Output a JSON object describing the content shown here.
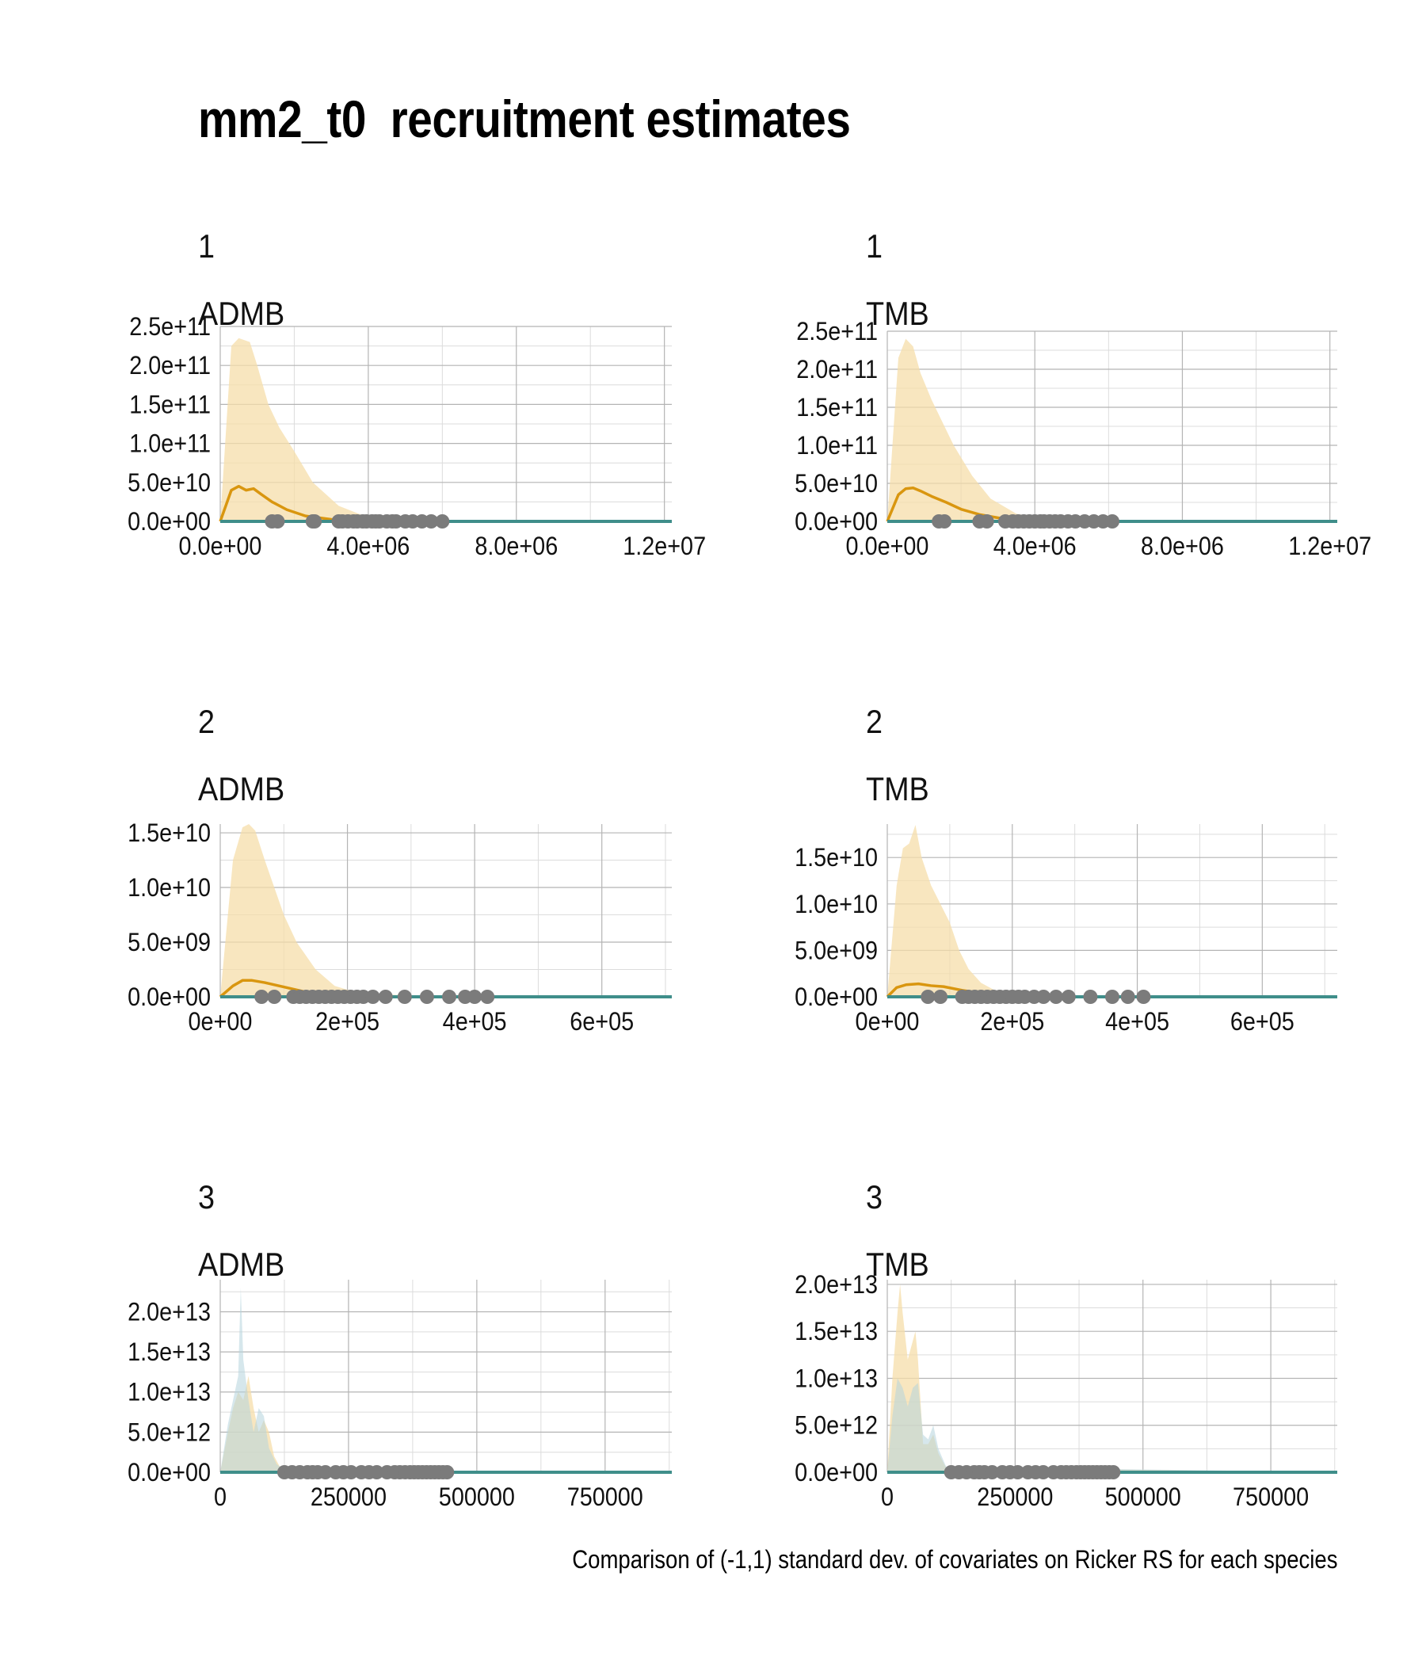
{
  "title": "mm2_t0  recruitment estimates",
  "caption": "Comparison of (-1,1) standard dev. of covariates on Ricker RS for each species",
  "colors": {
    "ci_orange": "#f5deaa",
    "ci_blue": "#b5d4dc",
    "line_orange": "#d9960f",
    "line_teal": "#3f8e8a",
    "points": "#7b7b7b"
  },
  "chart_data": [
    {
      "type": "area",
      "panel": "species-1-admb",
      "species_label": "1",
      "model_label": "ADMB",
      "xlim": [
        0,
        12200000
      ],
      "ylim": [
        0,
        250000000000
      ],
      "x_ticks": [
        0,
        4000000,
        8000000,
        12000000
      ],
      "x_tick_labels": [
        "0.0e+00",
        "4.0e+06",
        "8.0e+06",
        "1.2e+07"
      ],
      "y_ticks": [
        0,
        50000000000,
        100000000000,
        150000000000,
        200000000000,
        250000000000
      ],
      "y_tick_labels": [
        "0.0e+00",
        "5.0e+10",
        "1.0e+11",
        "1.5e+11",
        "2.0e+11",
        "2.5e+11"
      ],
      "series": [
        {
          "kind": "ci_upper_orange",
          "x": [
            0,
            300000,
            500000,
            800000,
            1000000,
            1300000,
            1600000,
            2000000,
            2500000,
            3200000,
            4000000,
            5000000,
            12200000
          ],
          "values": [
            0,
            225000000000,
            235000000000,
            230000000000,
            200000000000,
            150000000000,
            120000000000,
            90000000000,
            50000000000,
            20000000000,
            5000000000,
            1000000000,
            0
          ]
        },
        {
          "kind": "mean_orange",
          "x": [
            0,
            300000,
            500000,
            700000,
            900000,
            1100000,
            1400000,
            1800000,
            2300000,
            3000000,
            4000000,
            5000000,
            12200000
          ],
          "values": [
            0,
            40000000000,
            45000000000,
            40000000000,
            42000000000,
            35000000000,
            25000000000,
            15000000000,
            7000000000,
            2500000000,
            600000000,
            100000000,
            0
          ]
        },
        {
          "kind": "mean_teal",
          "x": [
            0,
            12200000
          ],
          "values": [
            0,
            0
          ]
        }
      ],
      "points_x": [
        1400000,
        1550000,
        2500000,
        2550000,
        3200000,
        3300000,
        3450000,
        3600000,
        3700000,
        3850000,
        3950000,
        4100000,
        4200000,
        4300000,
        4500000,
        4650000,
        4750000,
        5000000,
        5200000,
        5450000,
        5700000,
        6000000
      ],
      "points_y": 0
    },
    {
      "type": "area",
      "panel": "species-1-tmb",
      "species_label": "1",
      "model_label": "TMB",
      "xlim": [
        0,
        12200000
      ],
      "ylim": [
        0,
        250000000000
      ],
      "x_ticks": [
        0,
        4000000,
        8000000,
        12000000
      ],
      "x_tick_labels": [
        "0.0e+00",
        "4.0e+06",
        "8.0e+06",
        "1.2e+07"
      ],
      "y_ticks": [
        0,
        50000000000,
        100000000000,
        150000000000,
        200000000000,
        250000000000
      ],
      "y_tick_labels": [
        "0.0e+00",
        "5.0e+10",
        "1.0e+11",
        "1.5e+11",
        "2.0e+11",
        "2.5e+11"
      ],
      "series": [
        {
          "kind": "ci_upper_orange",
          "x": [
            0,
            300000,
            500000,
            700000,
            900000,
            1200000,
            1500000,
            1800000,
            2300000,
            2800000,
            3500000,
            4500000,
            12200000
          ],
          "values": [
            0,
            215000000000,
            240000000000,
            230000000000,
            195000000000,
            160000000000,
            130000000000,
            100000000000,
            60000000000,
            30000000000,
            10000000000,
            2000000000,
            0
          ]
        },
        {
          "kind": "mean_orange",
          "x": [
            0,
            300000,
            500000,
            700000,
            900000,
            1200000,
            1600000,
            2000000,
            2500000,
            3200000,
            4000000,
            5000000,
            12200000
          ],
          "values": [
            0,
            35000000000,
            43000000000,
            44000000000,
            40000000000,
            33000000000,
            25000000000,
            16000000000,
            9000000000,
            3000000000,
            700000000,
            100000000,
            0
          ]
        },
        {
          "kind": "mean_teal",
          "x": [
            0,
            12200000
          ],
          "values": [
            0,
            0
          ]
        }
      ],
      "points_x": [
        1400000,
        1550000,
        2500000,
        2700000,
        3200000,
        3400000,
        3550000,
        3700000,
        3850000,
        4000000,
        4150000,
        4250000,
        4400000,
        4550000,
        4700000,
        4900000,
        5100000,
        5350000,
        5600000,
        5850000,
        6100000
      ],
      "points_y": 0
    },
    {
      "type": "area",
      "panel": "species-2-admb",
      "species_label": "2",
      "model_label": "ADMB",
      "xlim": [
        0,
        710000
      ],
      "ylim": [
        0,
        15800000000
      ],
      "x_ticks": [
        0,
        200000,
        400000,
        600000
      ],
      "x_tick_labels": [
        "0e+00",
        "2e+05",
        "4e+05",
        "6e+05"
      ],
      "y_ticks": [
        0,
        5000000000,
        10000000000,
        15000000000
      ],
      "y_tick_labels": [
        "0.0e+00",
        "5.0e+09",
        "1.0e+10",
        "1.5e+10"
      ],
      "series": [
        {
          "kind": "ci_upper_orange",
          "x": [
            0,
            20000,
            35000,
            45000,
            55000,
            70000,
            85000,
            100000,
            120000,
            150000,
            180000,
            220000,
            260000,
            710000
          ],
          "values": [
            0,
            12500000000,
            15500000000,
            15800000000,
            15200000000,
            12500000000,
            10000000000,
            7500000000,
            5000000000,
            2500000000,
            1000000000,
            300000000,
            50000000,
            0
          ]
        },
        {
          "kind": "mean_orange",
          "x": [
            0,
            20000,
            35000,
            50000,
            70000,
            100000,
            130000,
            170000,
            220000,
            300000,
            710000
          ],
          "values": [
            0,
            1000000000,
            1500000000,
            1500000000,
            1300000000,
            900000000,
            500000000,
            200000000,
            60000000,
            10000000,
            0
          ]
        },
        {
          "kind": "mean_teal",
          "x": [
            0,
            710000
          ],
          "values": [
            0,
            0
          ]
        }
      ],
      "points_x": [
        65000,
        85000,
        115000,
        125000,
        135000,
        145000,
        155000,
        165000,
        175000,
        185000,
        195000,
        205000,
        215000,
        225000,
        240000,
        260000,
        290000,
        325000,
        360000,
        385000,
        400000,
        420000
      ],
      "points_y": 0
    },
    {
      "type": "area",
      "panel": "species-2-tmb",
      "species_label": "2",
      "model_label": "TMB",
      "xlim": [
        0,
        720000
      ],
      "ylim": [
        0,
        18600000000
      ],
      "x_ticks": [
        0,
        200000,
        400000,
        600000
      ],
      "x_tick_labels": [
        "0e+00",
        "2e+05",
        "4e+05",
        "6e+05"
      ],
      "y_ticks": [
        0,
        5000000000,
        10000000000,
        15000000000
      ],
      "y_tick_labels": [
        "0.0e+00",
        "5.0e+09",
        "1.0e+10",
        "1.5e+10"
      ],
      "series": [
        {
          "kind": "ci_upper_orange",
          "x": [
            0,
            15000,
            25000,
            35000,
            45000,
            55000,
            70000,
            85000,
            100000,
            115000,
            130000,
            150000,
            175000,
            210000,
            720000
          ],
          "values": [
            0,
            12000000000,
            16000000000,
            16500000000,
            18500000000,
            15000000000,
            12000000000,
            10000000000,
            8000000000,
            5000000000,
            3000000000,
            1500000000,
            600000000,
            100000000,
            0
          ]
        },
        {
          "kind": "mean_orange",
          "x": [
            0,
            15000,
            30000,
            50000,
            70000,
            90000,
            120000,
            160000,
            200000,
            260000,
            720000
          ],
          "values": [
            0,
            1000000000,
            1300000000,
            1400000000,
            1200000000,
            1100000000,
            700000000,
            300000000,
            100000000,
            20000000,
            0
          ]
        },
        {
          "kind": "mean_teal",
          "x": [
            0,
            720000
          ],
          "values": [
            0,
            0
          ]
        }
      ],
      "points_x": [
        65000,
        85000,
        120000,
        130000,
        140000,
        150000,
        160000,
        170000,
        180000,
        190000,
        200000,
        210000,
        220000,
        235000,
        250000,
        270000,
        290000,
        325000,
        360000,
        385000,
        410000
      ],
      "points_y": 0
    },
    {
      "type": "area",
      "panel": "species-3-admb",
      "species_label": "3",
      "model_label": "ADMB",
      "xlim": [
        0,
        880000
      ],
      "ylim": [
        0,
        24000000000000
      ],
      "x_ticks": [
        0,
        250000,
        500000,
        750000
      ],
      "x_tick_labels": [
        "0",
        "250000",
        "500000",
        "750000"
      ],
      "y_ticks": [
        0,
        5000000000000,
        10000000000000,
        15000000000000,
        20000000000000
      ],
      "y_tick_labels": [
        "0.0e+00",
        "5.0e+12",
        "1.0e+13",
        "1.5e+13",
        "2.0e+13"
      ],
      "series": [
        {
          "kind": "ci_upper_orange",
          "x": [
            0,
            15000,
            25000,
            35000,
            45000,
            55000,
            65000,
            75000,
            85000,
            95000,
            105000,
            115000,
            130000,
            880000
          ],
          "values": [
            0,
            5000000000000,
            8000000000000,
            10000000000000,
            9000000000000,
            12000000000000,
            8000000000000,
            5000000000000,
            6500000000000,
            5000000000000,
            2000000000000,
            800000000000,
            200000000000,
            0
          ]
        },
        {
          "kind": "ci_upper_blue",
          "x": [
            0,
            15000,
            25000,
            35000,
            40000,
            45000,
            55000,
            65000,
            75000,
            85000,
            95000,
            110000,
            125000,
            880000
          ],
          "values": [
            0,
            6000000000000,
            9000000000000,
            12000000000000,
            23000000000000,
            14000000000000,
            9000000000000,
            5000000000000,
            8000000000000,
            7000000000000,
            3000000000000,
            1000000000000,
            300000000000,
            0
          ]
        },
        {
          "kind": "mean_teal",
          "x": [
            0,
            880000
          ],
          "values": [
            0,
            0
          ]
        }
      ],
      "points_x": [
        125000,
        140000,
        155000,
        170000,
        180000,
        190000,
        205000,
        225000,
        240000,
        255000,
        275000,
        290000,
        305000,
        325000,
        340000,
        350000,
        360000,
        370000,
        378000,
        386000,
        394000,
        402000,
        410000,
        418000,
        426000,
        434000,
        442000
      ],
      "points_y": 0
    },
    {
      "type": "area",
      "panel": "species-3-tmb",
      "species_label": "3",
      "model_label": "TMB",
      "xlim": [
        0,
        880000
      ],
      "ylim": [
        0,
        20500000000000
      ],
      "x_ticks": [
        0,
        250000,
        500000,
        750000
      ],
      "x_tick_labels": [
        "0",
        "250000",
        "500000",
        "750000"
      ],
      "y_ticks": [
        0,
        5000000000000,
        10000000000000,
        15000000000000,
        20000000000000
      ],
      "y_tick_labels": [
        "0.0e+00",
        "5.0e+12",
        "1.0e+13",
        "1.5e+13",
        "2.0e+13"
      ],
      "series": [
        {
          "kind": "ci_upper_orange",
          "x": [
            0,
            10000,
            20000,
            25000,
            30000,
            40000,
            50000,
            55000,
            60000,
            70000,
            80000,
            90000,
            100000,
            115000,
            880000
          ],
          "values": [
            0,
            10000000000000,
            17000000000000,
            20000000000000,
            17000000000000,
            12000000000000,
            14000000000000,
            15000000000000,
            12000000000000,
            3000000000000,
            3000000000000,
            4000000000000,
            2000000000000,
            500000000000,
            0
          ]
        },
        {
          "kind": "ci_upper_blue",
          "x": [
            0,
            10000,
            20000,
            30000,
            40000,
            50000,
            60000,
            70000,
            80000,
            90000,
            100000,
            115000,
            880000
          ],
          "values": [
            0,
            6000000000000,
            10000000000000,
            9000000000000,
            7000000000000,
            9000000000000,
            9500000000000,
            4000000000000,
            3500000000000,
            5000000000000,
            2500000000000,
            600000000000,
            0
          ]
        },
        {
          "kind": "mean_teal",
          "x": [
            0,
            880000
          ],
          "values": [
            0,
            0
          ]
        }
      ],
      "points_x": [
        125000,
        140000,
        155000,
        170000,
        180000,
        190000,
        205000,
        225000,
        240000,
        255000,
        275000,
        290000,
        305000,
        325000,
        340000,
        350000,
        360000,
        370000,
        378000,
        386000,
        394000,
        402000,
        410000,
        418000,
        426000,
        434000,
        442000
      ],
      "points_y": 0
    }
  ]
}
